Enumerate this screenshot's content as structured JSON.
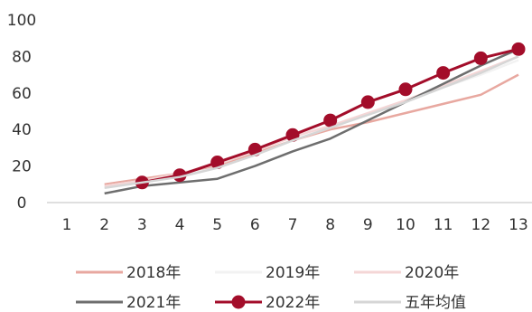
{
  "chart_data": {
    "type": "line",
    "x": [
      1,
      2,
      3,
      4,
      5,
      6,
      7,
      8,
      9,
      10,
      11,
      12,
      13
    ],
    "xlim": [
      1,
      13
    ],
    "ylim": [
      0,
      100
    ],
    "y_ticks": [
      0,
      20,
      40,
      60,
      80,
      100
    ],
    "grid": false,
    "legend_position": "bottom",
    "series": [
      {
        "name": "2018年",
        "color": "#e8a8a0",
        "marker": false,
        "values": [
          null,
          10,
          13,
          16,
          20,
          27,
          34,
          40,
          44,
          49,
          54,
          59,
          70
        ]
      },
      {
        "name": "2019年",
        "color": "#f2f2f2",
        "marker": false,
        "values": [
          null,
          9,
          12,
          15,
          19,
          26,
          34,
          41,
          48,
          56,
          63,
          70,
          78
        ]
      },
      {
        "name": "2020年",
        "color": "#f4d6d6",
        "marker": false,
        "values": [
          null,
          9,
          12,
          16,
          21,
          28,
          36,
          42,
          49,
          56,
          64,
          72,
          80
        ]
      },
      {
        "name": "2021年",
        "color": "#6e6e6e",
        "marker": false,
        "values": [
          null,
          5,
          9,
          11,
          13,
          20,
          28,
          35,
          45,
          55,
          65,
          75,
          84
        ]
      },
      {
        "name": "2022年",
        "color": "#a30d2a",
        "marker": true,
        "values": [
          null,
          null,
          11,
          15,
          22,
          29,
          37,
          45,
          55,
          62,
          71,
          79,
          84
        ]
      },
      {
        "name": "五年均值",
        "color": "#d6d6d6",
        "marker": false,
        "values": [
          null,
          8,
          11,
          14,
          19,
          26,
          34,
          41,
          48,
          55,
          63,
          71,
          80
        ]
      }
    ]
  }
}
